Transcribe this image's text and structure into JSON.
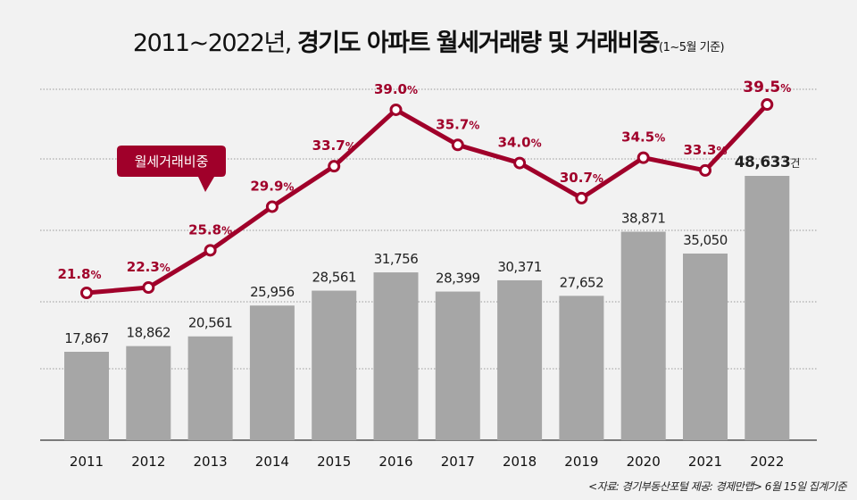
{
  "chart_data": {
    "type": "bar+line",
    "title_part1": "2011~2022년,",
    "title_part2": "경기도 아파트 월세거래량 및 거래비중",
    "subtitle": "(1~5월 기준)",
    "categories": [
      "2011",
      "2012",
      "2013",
      "2014",
      "2015",
      "2016",
      "2017",
      "2018",
      "2019",
      "2020",
      "2021",
      "2022"
    ],
    "series": [
      {
        "name": "월세거래량",
        "type": "bar",
        "color": "#a6a6a6",
        "values": [
          17867,
          18862,
          20561,
          25956,
          28561,
          31756,
          28399,
          30371,
          27652,
          38871,
          35050,
          48633
        ],
        "labels": [
          "17,867",
          "18,862",
          "20,561",
          "25,956",
          "28,561",
          "31,756",
          "28,399",
          "30,371",
          "27,652",
          "38,871",
          "35,050",
          "48,633"
        ],
        "last_unit": "건"
      },
      {
        "name": "월세거래비중",
        "type": "line",
        "color": "#a0002a",
        "values": [
          21.8,
          22.3,
          25.8,
          29.9,
          33.7,
          39.0,
          35.7,
          34.0,
          30.7,
          34.5,
          33.3,
          39.5
        ],
        "labels": [
          "21.8",
          "22.3",
          "25.8",
          "29.9",
          "33.7",
          "39.0",
          "35.7",
          "34.0",
          "30.7",
          "34.5",
          "33.3",
          "39.5"
        ],
        "unit": "%"
      }
    ],
    "legend_callout": "월세거래비중",
    "source": "<자료: 경기부동산포털 제공: 경제만랩> 6월 15일 집계기준"
  }
}
